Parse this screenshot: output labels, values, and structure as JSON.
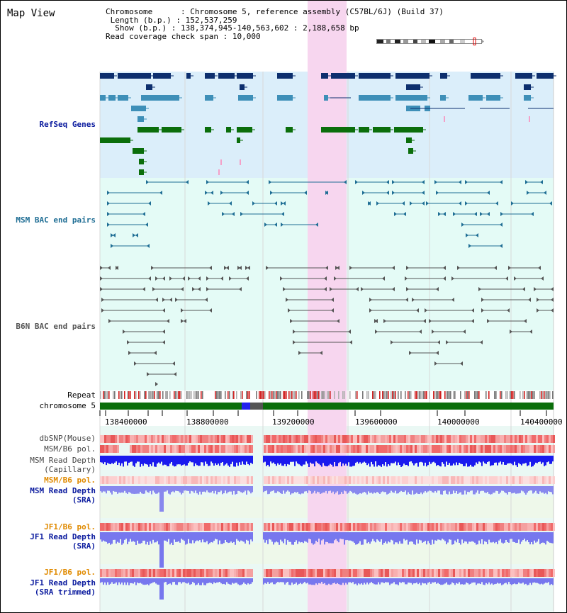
{
  "window": {
    "title": "Map View"
  },
  "info": {
    "chromosome_key": "Chromosome",
    "chromosome_value": "Chromosome 5, reference assembly (C57BL/6J) (Build 37)",
    "length_key": "Length (b.p.)",
    "length_value": "152,537,259",
    "show_key": "Show (b.p.)",
    "show_value": "138,374,945-140,563,602 : 2,188,658 bp",
    "coverage_key": "Read coverage check span",
    "coverage_value": "10,000"
  },
  "tracks": {
    "refseq": "RefSeq Genes",
    "msm_bac": "MSM BAC end pairs",
    "b6n_bac": "B6N BAC end pairs",
    "repeat": "Repeat",
    "chromosome": "chromosome 5",
    "dbsnp": "dbSNP(Mouse)",
    "msm_pol_1": "MSM/B6 pol.",
    "msm_depth_cap_1": "MSM Read Depth",
    "msm_depth_cap_2": "(Capillary)",
    "msm_pol_2": "MSM/B6 pol.",
    "msm_depth_sra_1": "MSM Read Depth",
    "msm_depth_sra_2": "(SRA)",
    "jf1_pol_1": "JF1/B6 pol.",
    "jf1_depth_sra_1": "JF1 Read Depth",
    "jf1_depth_sra_2": "(SRA)",
    "jf1_pol_2": "JF1/B6 pol.",
    "jf1_depth_trim_1": "JF1 Read Depth",
    "jf1_depth_trim_2": "(SRA trimmed)"
  },
  "axis": {
    "ticks": [
      "138400000",
      "138800000",
      "139200000",
      "139600000",
      "140000000",
      "140400000"
    ]
  },
  "colors": {
    "refseq_bg": "#dbeefa",
    "bac_bg": "#e4fbf6",
    "highlight": "#f7d6ef",
    "gene_dark": "#0d2f6e",
    "gene_mid": "#3e8fb8",
    "gene_green": "#0b6e0b",
    "gene_pink": "#f4a0c8",
    "msm_bac": "#1e6d94",
    "b6n_bac": "#555555",
    "chrom_bar": "#0b6e0b",
    "depth_blue": "#1a1aee",
    "depth_light": "#7777ee",
    "pol_red": "#e83030",
    "orange_label": "#e08a00",
    "navy_label": "#0a1a9e"
  }
}
